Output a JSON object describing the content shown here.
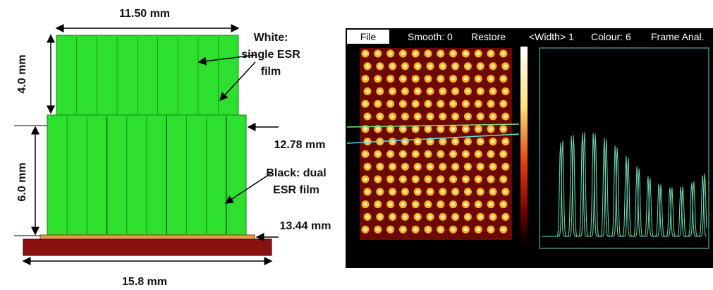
{
  "diagram": {
    "dimensions": {
      "top_width": "11.50 mm",
      "upper_height": "4.0 mm",
      "lower_height": "6.0 mm",
      "mid_width": "12.78 mm",
      "base_top_width": "13.44 mm",
      "base_width": "15.8 mm"
    },
    "annotations": {
      "white_label": [
        "White:",
        "single ESR",
        "film"
      ],
      "black_label": [
        "Black: dual",
        "ESR film"
      ]
    }
  },
  "panel": {
    "menu": [
      "File",
      "Smooth: 0",
      "Restore",
      "<Width> 1",
      "Colour: 6",
      "Frame Anal."
    ]
  }
}
